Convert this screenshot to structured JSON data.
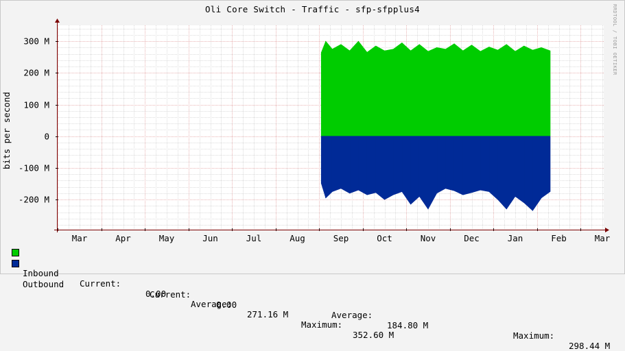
{
  "chart_data": {
    "type": "area",
    "title": "Oli Core Switch - Traffic - sfp-sfpplus4",
    "ylabel": "bits per second",
    "watermark": "RRDTOOL / TOBI OETIKER",
    "x_labels": [
      "Mar",
      "Apr",
      "May",
      "Jun",
      "Jul",
      "Aug",
      "Sep",
      "Oct",
      "Nov",
      "Dec",
      "Jan",
      "Feb",
      "Mar"
    ],
    "y_ticks": [
      {
        "value": 300,
        "label": "300 M"
      },
      {
        "value": 200,
        "label": "200 M"
      },
      {
        "value": 100,
        "label": "100 M"
      },
      {
        "value": 0,
        "label": "0"
      },
      {
        "value": -100,
        "label": "-100 M"
      },
      {
        "value": -200,
        "label": "-200 M"
      }
    ],
    "ylim": [
      -295,
      350
    ],
    "x_unit": "months since start of axis (Mar = 0)",
    "data_start": 5.55,
    "data_end": 10.8,
    "grid": true,
    "colors": {
      "inbound": "#00cc00",
      "outbound": "#002a97",
      "grid_major": "#e9b4b4",
      "grid_minor": "#dcdcdc",
      "axis": "#7a0000"
    },
    "series": [
      {
        "name": "Inbound",
        "color": "#00cc00",
        "x": [
          5.55,
          5.65,
          5.8,
          6.0,
          6.2,
          6.4,
          6.6,
          6.8,
          7.0,
          7.2,
          7.4,
          7.6,
          7.8,
          8.0,
          8.2,
          8.4,
          8.6,
          8.8,
          9.0,
          9.2,
          9.4,
          9.6,
          9.8,
          10.0,
          10.2,
          10.4,
          10.6,
          10.8
        ],
        "values": [
          265,
          300,
          275,
          290,
          270,
          300,
          265,
          285,
          270,
          275,
          295,
          270,
          290,
          268,
          280,
          275,
          292,
          270,
          288,
          268,
          282,
          272,
          290,
          268,
          285,
          272,
          280,
          270
        ]
      },
      {
        "name": "Outbound",
        "color": "#002a97",
        "x": [
          5.55,
          5.65,
          5.8,
          6.0,
          6.2,
          6.4,
          6.6,
          6.8,
          7.0,
          7.2,
          7.4,
          7.6,
          7.8,
          8.0,
          8.2,
          8.4,
          8.6,
          8.8,
          9.0,
          9.2,
          9.4,
          9.6,
          9.8,
          10.0,
          10.2,
          10.4,
          10.6,
          10.8
        ],
        "values": [
          -150,
          -195,
          -175,
          -165,
          -180,
          -170,
          -185,
          -178,
          -200,
          -185,
          -175,
          -215,
          -190,
          -230,
          -180,
          -165,
          -172,
          -185,
          -178,
          -170,
          -175,
          -200,
          -230,
          -190,
          -210,
          -235,
          -195,
          -175
        ]
      }
    ],
    "legend": [
      {
        "name": "Inbound",
        "current_label": "Current:",
        "current": "0.00",
        "average_label": "Average:",
        "average": "271.16 M",
        "max_label": "Maximum:",
        "max": "352.60 M"
      },
      {
        "name": "Outbound",
        "current_label": "Current:",
        "current": "0.00",
        "average_label": "Average:",
        "average": "184.80 M",
        "max_label": "Maximum:",
        "max": "298.44 M"
      }
    ]
  }
}
